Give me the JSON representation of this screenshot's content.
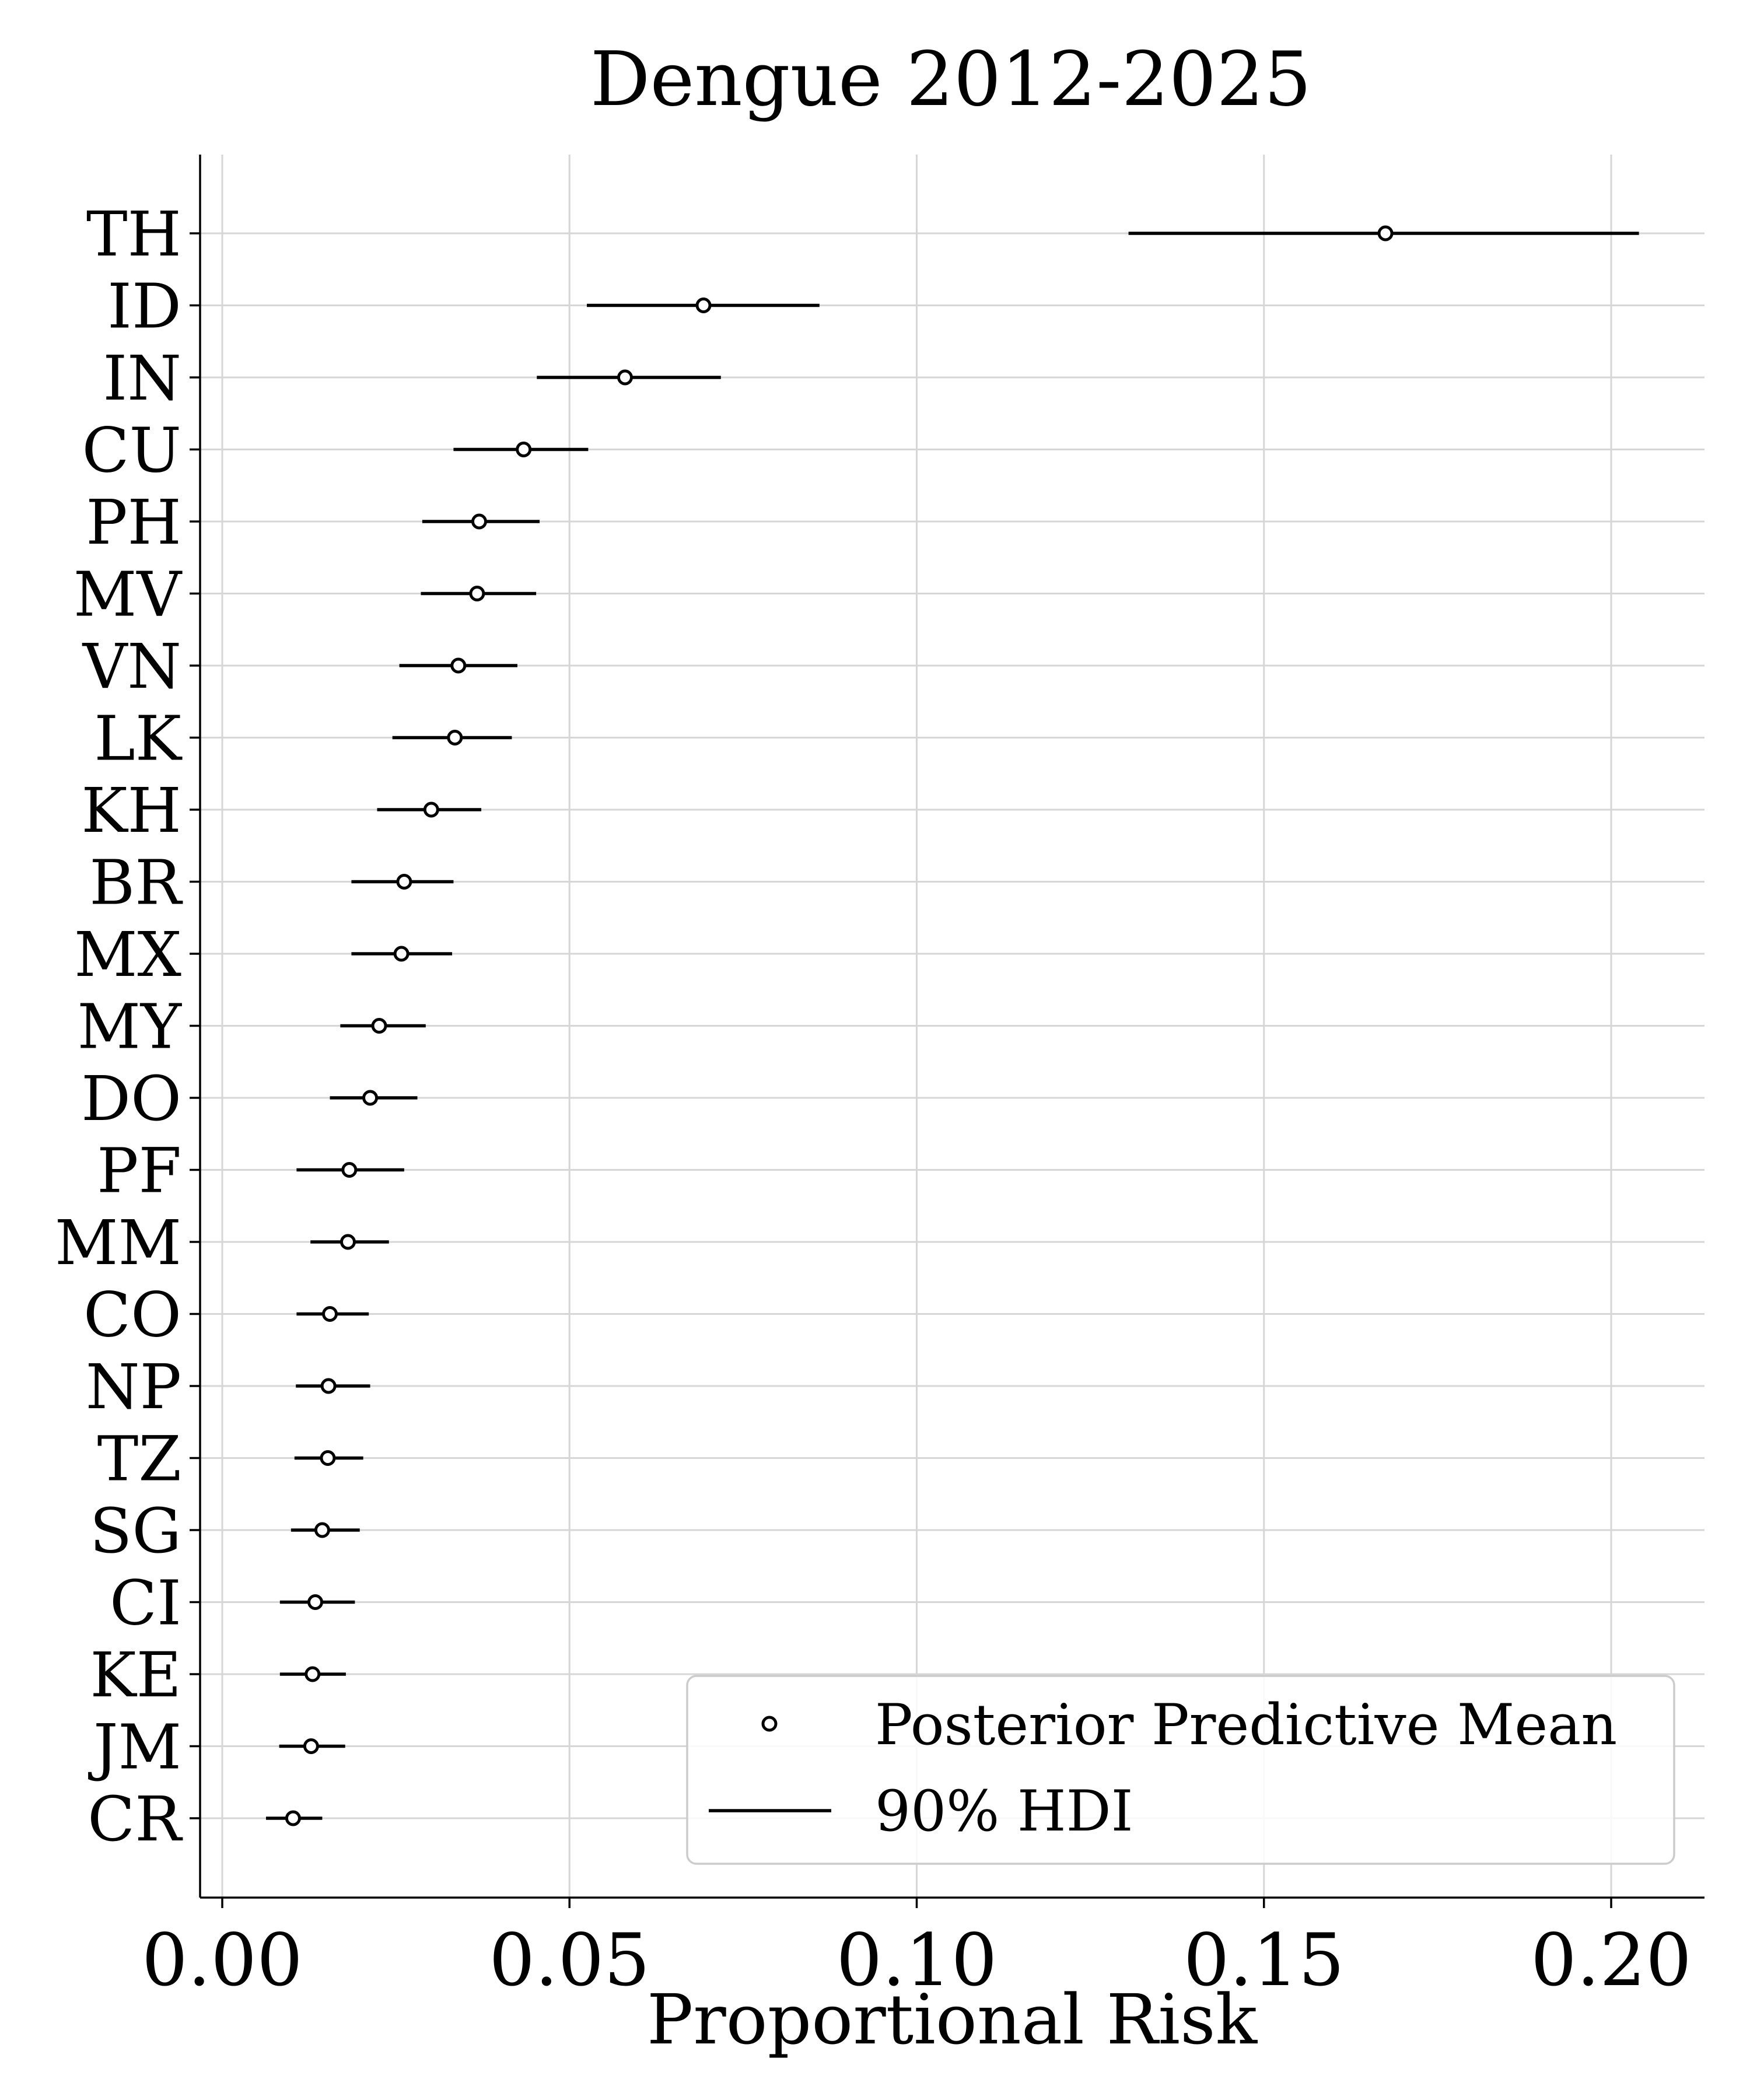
{
  "chart_data": {
    "type": "scatter",
    "title": "Dengue 2012-2025",
    "xlabel": "Proportional Risk",
    "ylabel": "",
    "xlim": [
      -0.003,
      0.214
    ],
    "xticks": [
      0.0,
      0.05,
      0.1,
      0.15,
      0.2
    ],
    "xtick_labels": [
      "0.00",
      "0.05",
      "0.10",
      "0.15",
      "0.20"
    ],
    "grid": true,
    "legend_position": "lower-right",
    "legend": {
      "mean_label": "Posterior Predictive Mean",
      "hdi_label": "90% HDI"
    },
    "categories": [
      "TH",
      "ID",
      "IN",
      "CU",
      "PH",
      "MV",
      "VN",
      "LK",
      "KH",
      "BR",
      "MX",
      "MY",
      "DO",
      "PF",
      "MM",
      "CO",
      "NP",
      "TZ",
      "SG",
      "CI",
      "KE",
      "JM",
      "CR"
    ],
    "series": [
      {
        "name": "Posterior Predictive Mean",
        "values": [
          0.1675,
          0.0693,
          0.058,
          0.0434,
          0.037,
          0.0367,
          0.034,
          0.0335,
          0.0301,
          0.0262,
          0.0258,
          0.0226,
          0.0213,
          0.0183,
          0.0181,
          0.0155,
          0.0153,
          0.0152,
          0.0144,
          0.0134,
          0.013,
          0.0128,
          0.0102
        ]
      },
      {
        "name": "90% HDI",
        "lower": [
          0.1305,
          0.0525,
          0.0453,
          0.0333,
          0.0288,
          0.0286,
          0.0255,
          0.0245,
          0.0223,
          0.0186,
          0.0186,
          0.017,
          0.0155,
          0.0107,
          0.0127,
          0.0107,
          0.0106,
          0.0104,
          0.0099,
          0.0083,
          0.0083,
          0.0082,
          0.0063
        ],
        "upper": [
          0.204,
          0.086,
          0.0718,
          0.0527,
          0.0457,
          0.0452,
          0.0425,
          0.0417,
          0.0373,
          0.0333,
          0.0331,
          0.0293,
          0.0281,
          0.0262,
          0.024,
          0.0211,
          0.0213,
          0.0203,
          0.0198,
          0.0191,
          0.0178,
          0.0177,
          0.0144
        ]
      }
    ]
  }
}
